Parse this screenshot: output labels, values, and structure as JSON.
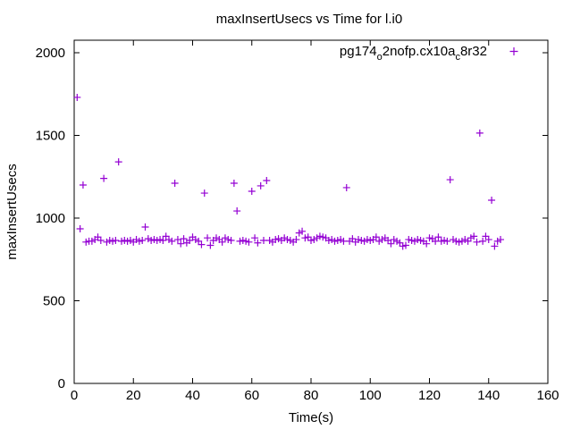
{
  "chart_data": {
    "type": "scatter",
    "title": "maxInsertUsecs vs Time for l.i0",
    "xlabel": "Time(s)",
    "ylabel": "maxInsertUsecs",
    "xlim": [
      0,
      160
    ],
    "ylim": [
      0,
      2000
    ],
    "xticks": [
      0,
      20,
      40,
      60,
      80,
      100,
      120,
      140,
      160
    ],
    "yticks": [
      0,
      500,
      1000,
      1500,
      2000
    ],
    "grid": false,
    "legend_placement": "top-right",
    "series": [
      {
        "name_main": "pg174",
        "name_sub1": "o",
        "name_mid": "2nofp.cx10a",
        "name_sub2": "c",
        "name_end": "8r32",
        "color": "#9400d3",
        "marker": "plus",
        "x": [
          1,
          2,
          3,
          4,
          5,
          6,
          7,
          8,
          9,
          10,
          11,
          12,
          13,
          14,
          15,
          16,
          17,
          18,
          19,
          20,
          21,
          22,
          23,
          24,
          25,
          26,
          27,
          28,
          29,
          30,
          31,
          32,
          33,
          34,
          35,
          36,
          37,
          38,
          39,
          40,
          41,
          42,
          43,
          44,
          45,
          46,
          47,
          48,
          49,
          50,
          51,
          52,
          53,
          54,
          55,
          56,
          57,
          58,
          59,
          60,
          61,
          62,
          63,
          64,
          65,
          66,
          67,
          68,
          69,
          70,
          71,
          72,
          73,
          74,
          75,
          76,
          77,
          78,
          79,
          80,
          81,
          82,
          83,
          84,
          85,
          86,
          87,
          88,
          89,
          90,
          91,
          92,
          93,
          94,
          95,
          96,
          97,
          98,
          99,
          100,
          101,
          102,
          103,
          104,
          105,
          106,
          107,
          108,
          109,
          110,
          111,
          112,
          113,
          114,
          115,
          116,
          117,
          118,
          119,
          120,
          121,
          122,
          123,
          124,
          125,
          126,
          127,
          128,
          129,
          130,
          131,
          132,
          133,
          134,
          135,
          136,
          137,
          138,
          139,
          140,
          141,
          142,
          143,
          144
        ],
        "y": [
          1730,
          935,
          1200,
          855,
          860,
          860,
          870,
          885,
          865,
          1240,
          855,
          865,
          860,
          865,
          1340,
          860,
          865,
          860,
          865,
          855,
          870,
          860,
          865,
          946,
          875,
          865,
          870,
          865,
          870,
          865,
          890,
          870,
          860,
          1211,
          870,
          845,
          875,
          850,
          865,
          885,
          870,
          860,
          840,
          1151,
          880,
          835,
          865,
          880,
          870,
          855,
          880,
          870,
          865,
          1211,
          1043,
          860,
          865,
          860,
          855,
          1162,
          880,
          850,
          1195,
          865,
          1227,
          865,
          855,
          870,
          875,
          865,
          880,
          870,
          865,
          855,
          870,
          910,
          920,
          880,
          885,
          865,
          870,
          880,
          890,
          885,
          880,
          865,
          870,
          860,
          865,
          870,
          860,
          1184,
          860,
          875,
          855,
          870,
          865,
          860,
          870,
          865,
          870,
          885,
          860,
          870,
          880,
          865,
          845,
          870,
          860,
          850,
          830,
          835,
          870,
          865,
          860,
          870,
          865,
          860,
          845,
          880,
          875,
          860,
          885,
          860,
          865,
          860,
          1232,
          870,
          860,
          855,
          860,
          870,
          860,
          880,
          890,
          855,
          1514,
          860,
          890,
          870,
          1108,
          830,
          860,
          870
        ]
      }
    ]
  }
}
